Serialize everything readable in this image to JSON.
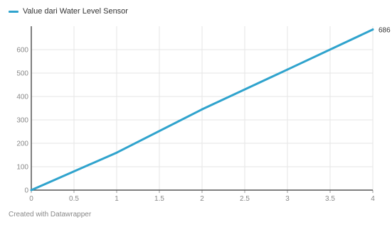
{
  "chart_data": {
    "type": "line",
    "title": "",
    "xlabel": "",
    "ylabel": "",
    "x": [
      0,
      1,
      2,
      3,
      4
    ],
    "series": [
      {
        "name": "Value dari Water Level Sensor",
        "values": [
          0,
          160,
          345,
          515,
          686
        ],
        "color": "#2fa3cd"
      }
    ],
    "xlim": [
      0,
      4
    ],
    "ylim": [
      0,
      686
    ],
    "x_ticks": [
      "0",
      "0.5",
      "1",
      "1.5",
      "2",
      "2.5",
      "3",
      "3.5",
      "4"
    ],
    "y_ticks": [
      "0",
      "100",
      "200",
      "300",
      "400",
      "500",
      "600"
    ],
    "end_label": "686",
    "grid": true,
    "legend_position": "top-left"
  },
  "footer": {
    "credit": "Created with Datawrapper"
  }
}
